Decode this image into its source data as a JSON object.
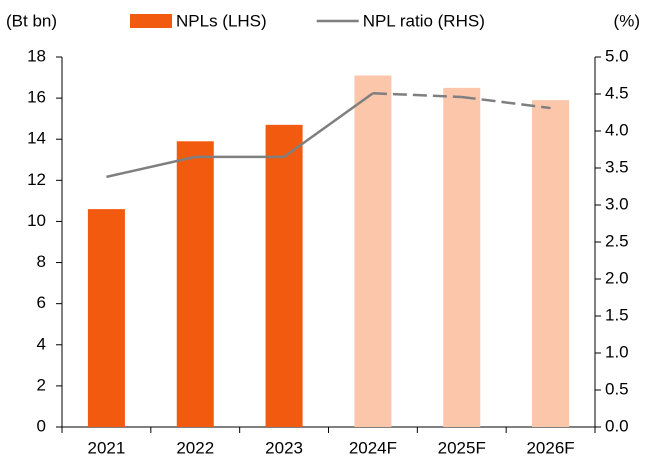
{
  "chart_data": {
    "type": "bar-line",
    "y_label": "(Bt bn)",
    "y2_label": "(%)",
    "categories": [
      "2021",
      "2022",
      "2023",
      "2024F",
      "2025F",
      "2026F"
    ],
    "series": [
      {
        "name": "NPLs (LHS)",
        "type": "bar",
        "color": "#f25a0f",
        "colors": [
          "#f25a0f",
          "#f25a0f",
          "#f25a0f",
          "#fcc6aa",
          "#fcc6aa",
          "#fcc6aa"
        ],
        "values": [
          10.6,
          13.9,
          14.7,
          17.1,
          16.5,
          15.9
        ]
      },
      {
        "name": "NPL ratio (RHS)",
        "type": "line",
        "axis": "y2",
        "color": "#7f7f7f",
        "dashed_segments": [
          false,
          false,
          false,
          true,
          true
        ],
        "values": [
          3.38,
          3.65,
          3.65,
          4.51,
          4.46,
          4.31
        ]
      }
    ],
    "ylim": [
      0,
      18
    ],
    "yticks": [
      0,
      2,
      4,
      6,
      8,
      10,
      12,
      14,
      16,
      18
    ],
    "y2lim": [
      0,
      5
    ],
    "y2ticks": [
      {
        "value": 0,
        "label": "0.0"
      },
      0.5,
      {
        "value": 1,
        "label": "1.0"
      },
      1.5,
      {
        "value": 2,
        "label": "2.0"
      },
      2.5,
      {
        "value": 3,
        "label": "3.0"
      },
      3.5,
      {
        "value": 4,
        "label": "4.0"
      },
      4.5,
      {
        "value": 5,
        "label": "5.0"
      }
    ],
    "legend": "top",
    "grid": false
  }
}
